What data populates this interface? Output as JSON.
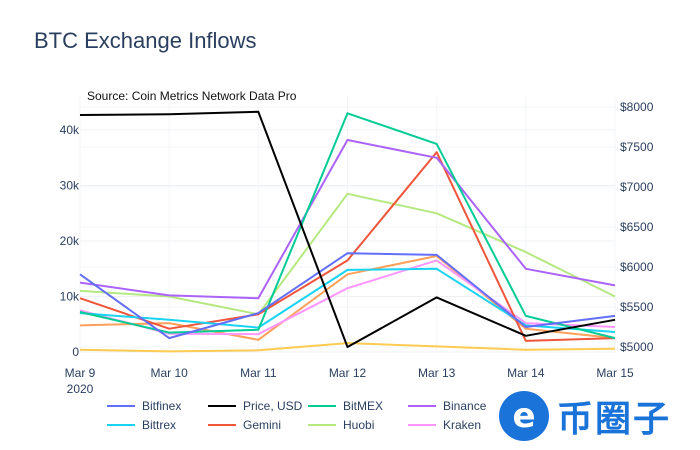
{
  "chart_data": {
    "type": "line",
    "title": "BTC Exchange Inflows",
    "annotation": "Source: Coin Metrics Network Data Pro",
    "categories": [
      "Mar 9",
      "Mar 10",
      "Mar 11",
      "Mar 12",
      "Mar 13",
      "Mar 14",
      "Mar 15"
    ],
    "x_year_label": "2020",
    "y_left": {
      "range": [
        0,
        42000
      ],
      "ticks": [
        0,
        10000,
        20000,
        30000,
        40000
      ],
      "tick_labels": [
        "0",
        "10k",
        "20k",
        "30k",
        "40k"
      ]
    },
    "y_right": {
      "range": [
        5000,
        8000
      ],
      "ticks": [
        5000,
        5500,
        6000,
        6500,
        7000,
        7500,
        8000
      ],
      "tick_labels": [
        "$5000",
        "$5500",
        "$6000",
        "$6500",
        "$7000",
        "$7500",
        "$8000"
      ]
    },
    "grid": true,
    "legend_position": "bottom",
    "series": [
      {
        "name": "Bitfinex",
        "color": "#636efa",
        "axis": "left",
        "values": [
          14000,
          2500,
          7000,
          17800,
          17500,
          4500,
          6500
        ]
      },
      {
        "name": "Price, USD",
        "color": "#000000",
        "axis": "right",
        "values": [
          7900,
          7910,
          7940,
          5000,
          5620,
          5140,
          5340
        ]
      },
      {
        "name": "BitMEX",
        "color": "#00cc96",
        "axis": "left",
        "values": [
          7200,
          3500,
          4000,
          43000,
          37500,
          6500,
          2500
        ]
      },
      {
        "name": "Binance",
        "color": "#ab63fa",
        "axis": "left",
        "values": [
          12500,
          10200,
          9700,
          38200,
          35000,
          15000,
          12000
        ]
      },
      {
        "name": "Bittrex",
        "color": "#19d3f3",
        "axis": "left",
        "values": [
          7000,
          5800,
          4400,
          14800,
          15000,
          4800,
          3600
        ]
      },
      {
        "name": "Gemini",
        "color": "#ef553b",
        "axis": "left",
        "values": [
          9700,
          4200,
          6800,
          16500,
          36000,
          2000,
          2500
        ]
      },
      {
        "name": "Huobi",
        "color": "#b6e880",
        "axis": "left",
        "values": [
          11000,
          10000,
          6800,
          28500,
          25000,
          18000,
          10000
        ]
      },
      {
        "name": "Kraken",
        "color": "#ff97ff",
        "axis": "left",
        "values": [
          7500,
          3300,
          3200,
          11500,
          16500,
          5200,
          4500
        ]
      },
      {
        "name": "",
        "color": "#ffa15a",
        "axis": "left",
        "values": [
          4800,
          5200,
          2200,
          14000,
          17300,
          4200,
          2500
        ]
      },
      {
        "name": "",
        "color": "#fecb52",
        "axis": "left",
        "values": [
          400,
          100,
          300,
          1600,
          1000,
          400,
          600
        ]
      }
    ]
  },
  "watermark": {
    "glyph": "e",
    "text": "币圈子"
  }
}
